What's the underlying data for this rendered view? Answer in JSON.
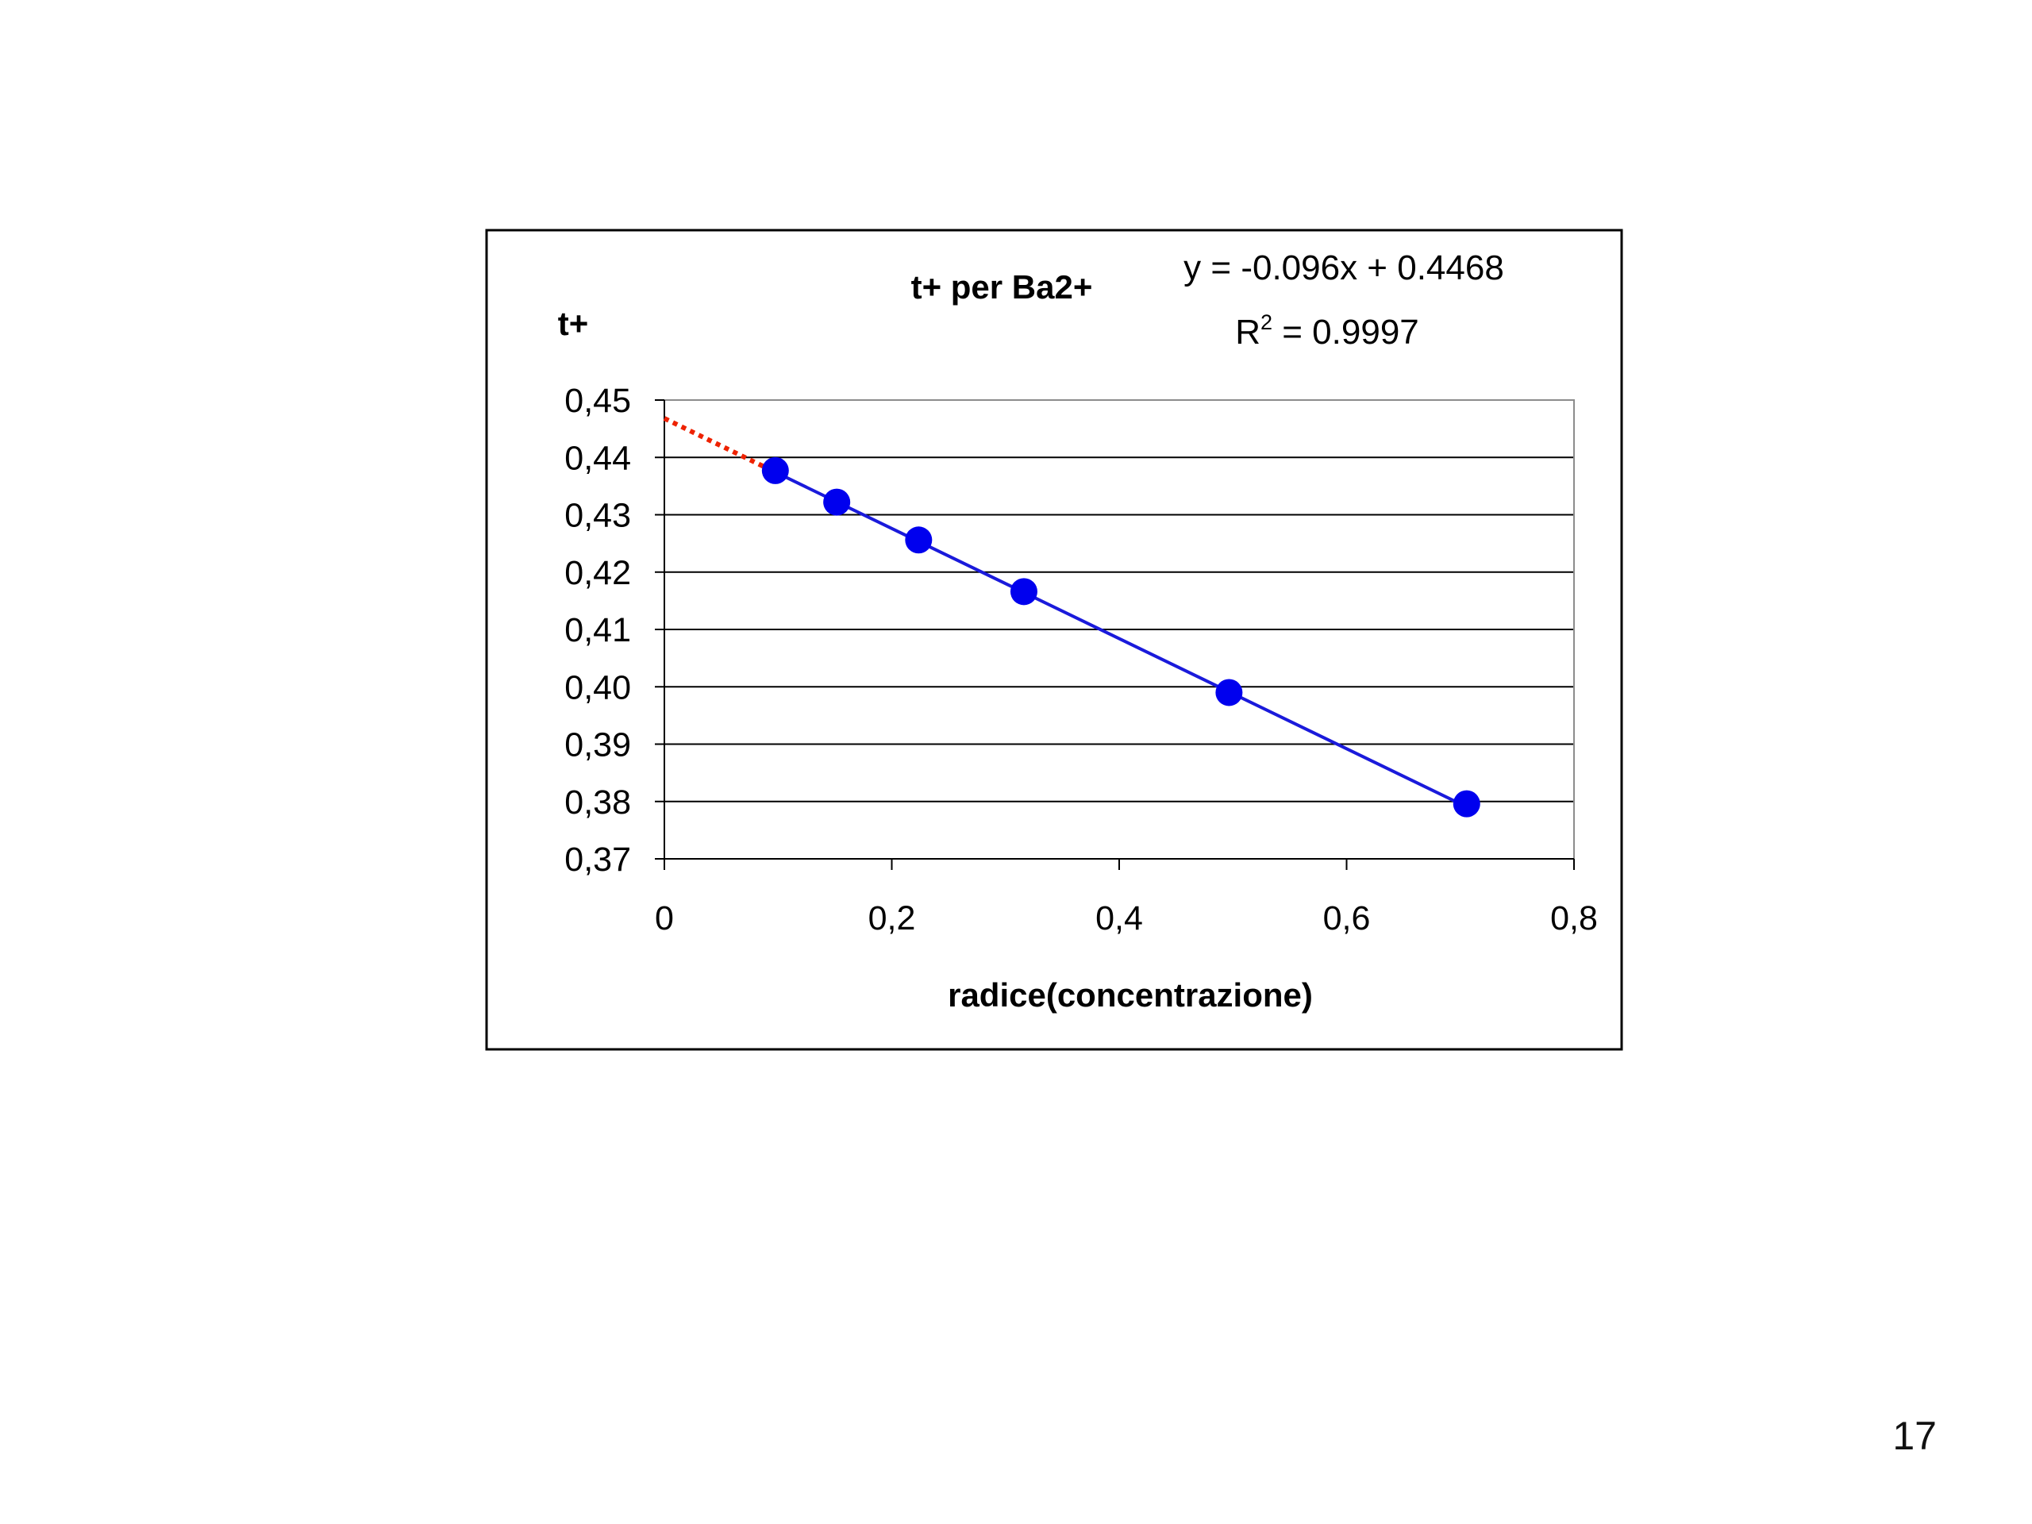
{
  "page": {
    "number": "17"
  },
  "chart_data": {
    "type": "scatter",
    "title": "t+ per Ba2+",
    "xlabel": "radice(concentrazione)",
    "ylabel": "t+",
    "xlim": [
      0,
      0.8
    ],
    "ylim": [
      0.37,
      0.45
    ],
    "x_ticks": [
      "0",
      "0,2",
      "0,4",
      "0,6",
      "0,8"
    ],
    "y_ticks": [
      "0,37",
      "0,38",
      "0,39",
      "0,40",
      "0,41",
      "0,42",
      "0,43",
      "0,44",
      "0,45"
    ],
    "grid": {
      "horizontal": true,
      "vertical": false
    },
    "legend": "none",
    "series": [
      {
        "color": "#0000ee",
        "marker": "circle",
        "x": [
          0.0976,
          0.1516,
          0.2236,
          0.3162,
          0.4966,
          0.7056
        ],
        "y": [
          0.4377,
          0.4322,
          0.4256,
          0.4166,
          0.399,
          0.3796
        ]
      }
    ],
    "trendline": {
      "equation": "y = -0.096x + 0.4468",
      "r2_prefix": "R",
      "r2_exp": "2",
      "r2_value": " = 0.9997",
      "slope": -0.096,
      "intercept": 0.4468,
      "fit_range": [
        0.0976,
        0.7056
      ],
      "extrapolation_range": [
        0,
        0.0976
      ],
      "fit_color": "#1a1adb",
      "extrapolation_color": "#ee2200"
    }
  }
}
